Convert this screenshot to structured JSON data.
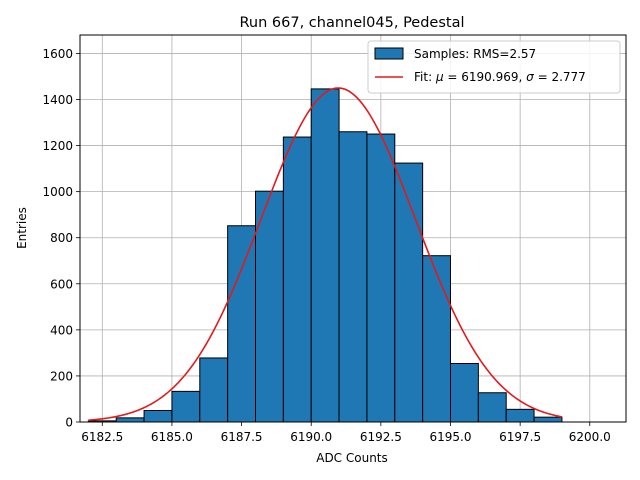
{
  "chart_data": {
    "type": "histogram",
    "title": "Run 667, channel045, Pedestal",
    "xlabel": "ADC Counts",
    "ylabel": "Entries",
    "xlim": [
      6181.7,
      6201.3
    ],
    "ylim": [
      0,
      1680
    ],
    "xticks": [
      6182.5,
      6185.0,
      6187.5,
      6190.0,
      6192.5,
      6195.0,
      6197.5,
      6200.0
    ],
    "xtick_labels": [
      "6182.5",
      "6185.0",
      "6187.5",
      "6190.0",
      "6192.5",
      "6195.0",
      "6197.5",
      "6200.0"
    ],
    "yticks": [
      0,
      200,
      400,
      600,
      800,
      1000,
      1200,
      1400,
      1600
    ],
    "ytick_labels": [
      "0",
      "200",
      "400",
      "600",
      "800",
      "1000",
      "1200",
      "1400",
      "1600"
    ],
    "grid": true,
    "legend_position": "top-right",
    "bins": [
      {
        "x0": 6182,
        "x1": 6183,
        "count": 5
      },
      {
        "x0": 6183,
        "x1": 6184,
        "count": 18
      },
      {
        "x0": 6184,
        "x1": 6185,
        "count": 50
      },
      {
        "x0": 6185,
        "x1": 6186,
        "count": 133
      },
      {
        "x0": 6186,
        "x1": 6187,
        "count": 278
      },
      {
        "x0": 6187,
        "x1": 6188,
        "count": 852
      },
      {
        "x0": 6188,
        "x1": 6189,
        "count": 1002
      },
      {
        "x0": 6189,
        "x1": 6190,
        "count": 1237
      },
      {
        "x0": 6190,
        "x1": 6191,
        "count": 1446
      },
      {
        "x0": 6191,
        "x1": 6192,
        "count": 1260
      },
      {
        "x0": 6192,
        "x1": 6193,
        "count": 1250
      },
      {
        "x0": 6193,
        "x1": 6194,
        "count": 1124
      },
      {
        "x0": 6194,
        "x1": 6195,
        "count": 722
      },
      {
        "x0": 6195,
        "x1": 6196,
        "count": 254
      },
      {
        "x0": 6196,
        "x1": 6197,
        "count": 127
      },
      {
        "x0": 6197,
        "x1": 6198,
        "count": 55
      },
      {
        "x0": 6198,
        "x1": 6199,
        "count": 21
      }
    ],
    "fit": {
      "mu": 6190.969,
      "sigma": 2.777,
      "amplitude": 1450,
      "x_range": [
        6182,
        6199
      ]
    },
    "legend": {
      "samples_label": "Samples: RMS=2.57",
      "fit_prefix": "Fit: ",
      "mu_symbol": "μ",
      "mu_text": " = 6190.969, ",
      "sigma_symbol": "σ",
      "sigma_text": " = 2.777"
    },
    "colors": {
      "bar_fill": "#1f77b4",
      "bar_edge": "#000000",
      "fit_line": "#e31a1c",
      "grid": "#b0b0b0"
    }
  }
}
